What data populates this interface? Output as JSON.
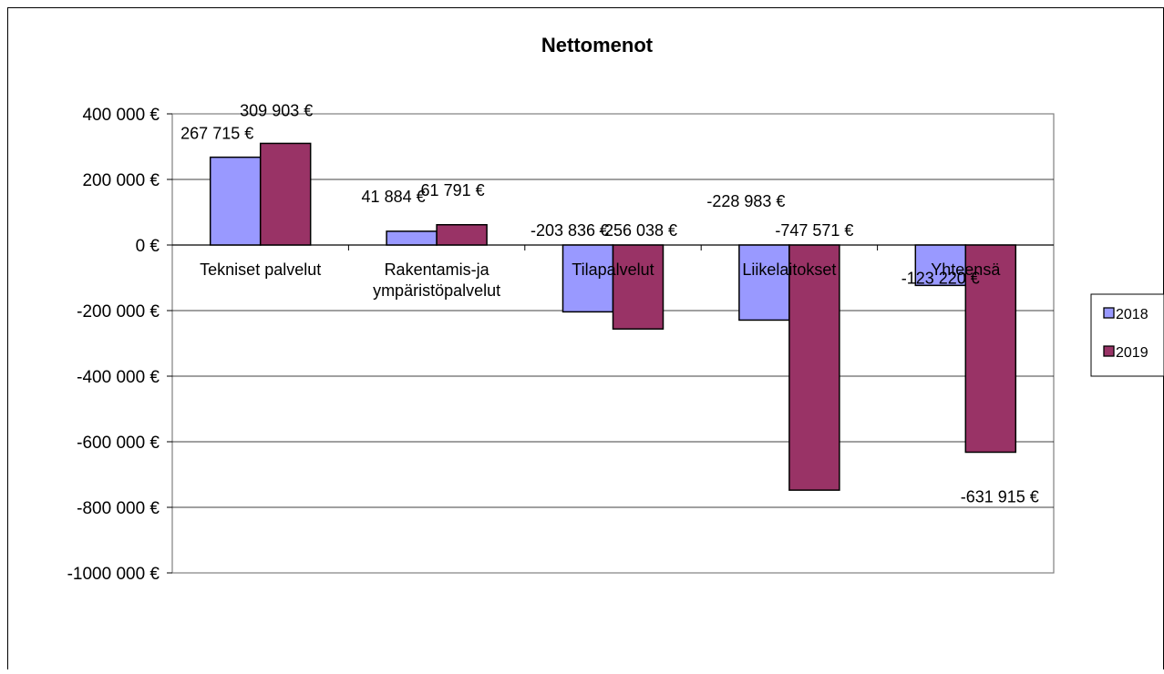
{
  "chart_data": {
    "type": "bar",
    "title": "Nettomenot",
    "categories": [
      [
        "Tekniset palvelut"
      ],
      [
        "Rakentamis-ja",
        "ympäristöpalvelut"
      ],
      [
        "Tilapalvelut"
      ],
      [
        "Liikelaitokset"
      ],
      [
        "Yhteensä"
      ]
    ],
    "series": [
      {
        "name": "2018",
        "color": "#9999ff",
        "values": [
          267715,
          41884,
          -203836,
          -228983,
          -123220
        ],
        "labels": [
          "267 715 €",
          "41 884 €",
          "-203 836 €",
          "-228 983 €",
          "-123 220 €"
        ]
      },
      {
        "name": "2019",
        "color": "#993366",
        "values": [
          309903,
          61791,
          -256038,
          -747571,
          -631915
        ],
        "labels": [
          "309 903 €",
          "61 791 €",
          "-256 038 €",
          "-747 571 €",
          "-631 915 €"
        ]
      }
    ],
    "ylim": [
      -1000000,
      400000
    ],
    "yticks": [
      {
        "value": 400000,
        "label": "400 000 €"
      },
      {
        "value": 200000,
        "label": "200 000 €"
      },
      {
        "value": 0,
        "label": "0 €"
      },
      {
        "value": -200000,
        "label": "-200 000 €"
      },
      {
        "value": -400000,
        "label": "-400 000 €"
      },
      {
        "value": -600000,
        "label": "-600 000 €"
      },
      {
        "value": -800000,
        "label": "-800 000 €"
      },
      {
        "value": -1000000,
        "label": "-1000 000 €"
      }
    ],
    "grid": true,
    "legend_position": "right"
  }
}
